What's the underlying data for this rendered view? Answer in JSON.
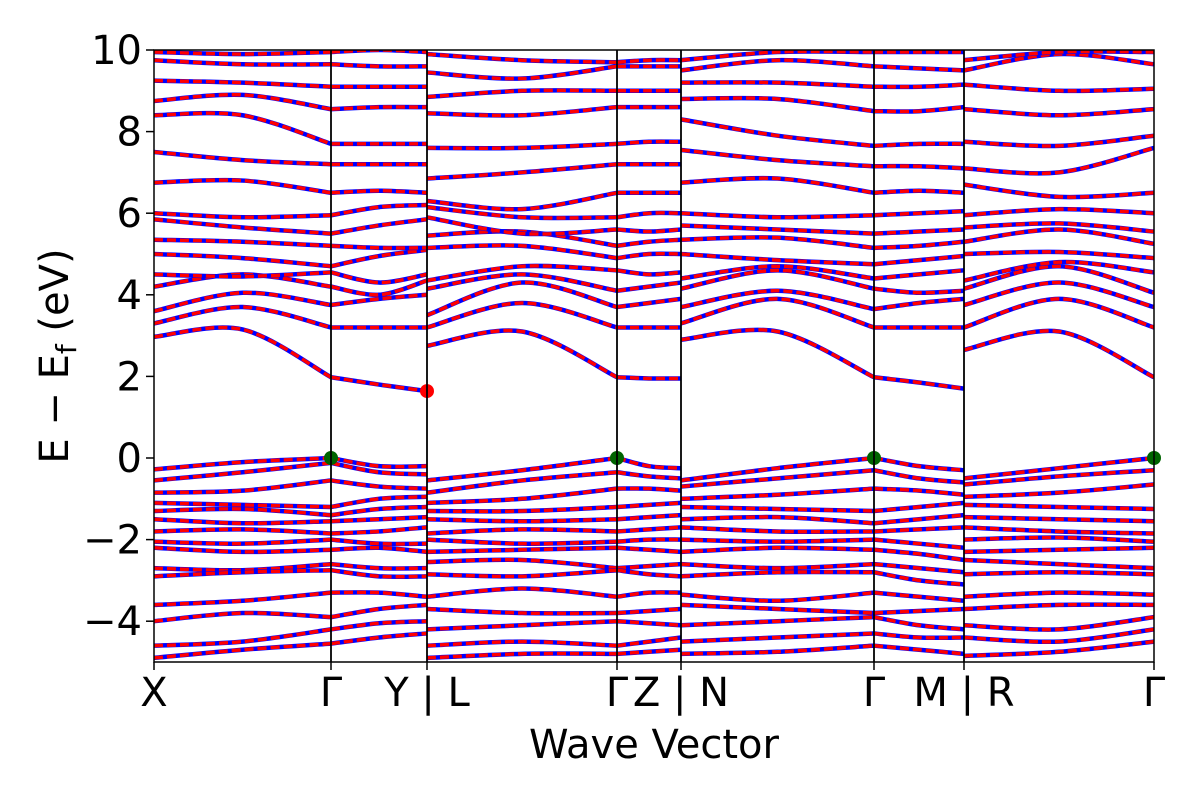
{
  "chart_data": {
    "type": "line",
    "title": "",
    "xlabel": "Wave Vector",
    "ylabel_parts": [
      "E − E",
      "f",
      " (eV)"
    ],
    "ylim": [
      -5,
      10
    ],
    "yticks": [
      10,
      8,
      6,
      4,
      2,
      0,
      -2,
      -4
    ],
    "ytick_labels": [
      "10",
      "8",
      "6",
      "4",
      "2",
      "0",
      "−2",
      "−4"
    ],
    "grid": false,
    "legend": "none",
    "xlim": [
      0,
      1
    ],
    "xticks": [
      0.0,
      0.177,
      0.273,
      0.463,
      0.527,
      0.72,
      0.81,
      1.0
    ],
    "xtick_labels": [
      "X",
      "Γ",
      "Y | L",
      "Γ",
      "Z | N",
      "Γ",
      "M | R",
      "Γ"
    ],
    "colors": {
      "series_1": "#0000ff",
      "series_2": "#ff0000",
      "vbm_marker": "#006400",
      "cbm_marker": "#ff0000"
    },
    "series": [
      {
        "style": "blue solid"
      },
      {
        "style": "red dashed"
      }
    ],
    "band_extrema_markers": [
      {
        "kind": "VBM",
        "points": [
          [
            0.177,
            0.0
          ],
          [
            0.463,
            0.0
          ],
          [
            0.72,
            0.0
          ],
          [
            1.0,
            0.0
          ]
        ]
      },
      {
        "kind": "CBM",
        "points": [
          [
            0.273,
            1.64
          ]
        ]
      }
    ],
    "bands_by_segment": {
      "X-Gamma": [
        [
          0,
          -0.28,
          -0.1,
          0
        ],
        [
          0,
          -0.55,
          -0.35,
          -0.12
        ],
        [
          0,
          -0.85,
          -0.8,
          -0.55
        ],
        [
          0,
          -1.1,
          -1.15,
          -1.2
        ],
        [
          0,
          -1.3,
          -1.25,
          -1.4
        ],
        [
          0,
          -1.5,
          -1.6,
          -1.55
        ],
        [
          0,
          -1.8,
          -1.75,
          -1.85
        ],
        [
          0,
          -2.05,
          -2.1,
          -2.0
        ],
        [
          0,
          -2.2,
          -2.3,
          -2.25
        ],
        [
          0,
          -2.7,
          -2.75,
          -2.6
        ],
        [
          0,
          -2.9,
          -2.8,
          -2.75
        ],
        [
          0,
          -3.6,
          -3.5,
          -3.3
        ],
        [
          0,
          -4.0,
          -3.8,
          -3.9
        ],
        [
          0,
          -4.6,
          -4.5,
          -4.2
        ],
        [
          0,
          -4.9,
          -4.7,
          -4.55
        ],
        [
          0,
          2.97,
          3.15,
          1.98
        ],
        [
          0,
          3.3,
          3.7,
          3.2
        ],
        [
          0,
          3.6,
          4.05,
          3.75
        ],
        [
          0,
          4.2,
          4.5,
          4.2
        ],
        [
          0,
          4.5,
          4.45,
          4.55
        ],
        [
          0,
          5.0,
          4.9,
          4.7
        ],
        [
          0,
          5.35,
          5.3,
          5.2
        ],
        [
          0,
          5.85,
          5.65,
          5.5
        ],
        [
          0,
          6.0,
          5.9,
          5.95
        ],
        [
          0,
          6.75,
          6.8,
          6.5
        ],
        [
          0,
          7.5,
          7.3,
          7.2
        ],
        [
          0,
          8.4,
          8.4,
          7.7
        ],
        [
          0,
          8.75,
          8.9,
          8.55
        ],
        [
          0,
          9.25,
          9.2,
          9.1
        ],
        [
          0,
          9.75,
          9.65,
          9.65
        ],
        [
          0,
          9.95,
          9.9,
          9.95
        ]
      ],
      "Gamma-Y": [
        [
          0,
          0.0,
          -0.2,
          -0.2
        ],
        [
          0,
          -0.12,
          -0.35,
          -0.4
        ],
        [
          0,
          -0.55,
          -0.7,
          -0.75
        ],
        [
          0,
          -1.2,
          -1.0,
          -0.95
        ],
        [
          0,
          -1.4,
          -1.25,
          -1.2
        ],
        [
          0,
          -1.55,
          -1.5,
          -1.45
        ],
        [
          0,
          -1.85,
          -1.8,
          -1.7
        ],
        [
          0,
          -2.0,
          -2.1,
          -2.1
        ],
        [
          0,
          -2.25,
          -2.2,
          -2.3
        ],
        [
          0,
          -2.6,
          -2.7,
          -2.7
        ],
        [
          0,
          -2.75,
          -2.9,
          -2.9
        ],
        [
          0,
          -3.3,
          -3.3,
          -3.4
        ],
        [
          0,
          -3.9,
          -3.7,
          -3.6
        ],
        [
          0,
          -4.2,
          -4.05,
          -4.0
        ],
        [
          0,
          -4.55,
          -4.4,
          -4.3
        ],
        [
          0,
          1.98,
          1.8,
          1.64
        ],
        [
          0,
          3.2,
          3.2,
          3.2
        ],
        [
          0,
          3.75,
          3.9,
          4.0
        ],
        [
          0,
          4.2,
          4.0,
          4.35
        ],
        [
          0,
          4.55,
          4.3,
          4.5
        ],
        [
          0,
          4.7,
          4.95,
          5.1
        ],
        [
          0,
          5.2,
          5.15,
          5.15
        ],
        [
          0,
          5.5,
          5.7,
          5.85
        ],
        [
          0,
          5.95,
          6.15,
          6.2
        ],
        [
          0,
          6.5,
          6.55,
          6.5
        ],
        [
          0,
          7.2,
          7.2,
          7.2
        ],
        [
          0,
          7.7,
          7.7,
          7.7
        ],
        [
          0,
          8.55,
          8.6,
          8.6
        ],
        [
          0,
          9.1,
          9.1,
          9.1
        ],
        [
          0,
          9.65,
          9.6,
          9.6
        ],
        [
          0,
          9.95,
          10.0,
          9.95
        ]
      ],
      "L-Gamma": [
        [
          0,
          -0.55,
          -0.3,
          0.0
        ],
        [
          0,
          -0.85,
          -0.55,
          -0.35
        ],
        [
          0,
          -1.1,
          -1.0,
          -0.75
        ],
        [
          0,
          -1.3,
          -1.3,
          -1.2
        ],
        [
          0,
          -1.5,
          -1.55,
          -1.5
        ],
        [
          0,
          -1.85,
          -1.75,
          -1.8
        ],
        [
          0,
          -2.0,
          -2.1,
          -2.05
        ],
        [
          0,
          -2.3,
          -2.25,
          -2.2
        ],
        [
          0,
          -2.55,
          -2.5,
          -2.7
        ],
        [
          0,
          -2.85,
          -2.9,
          -2.75
        ],
        [
          0,
          -3.4,
          -3.2,
          -3.4
        ],
        [
          0,
          -3.7,
          -3.8,
          -3.8
        ],
        [
          0,
          -4.2,
          -4.1,
          -4.0
        ],
        [
          0,
          -4.6,
          -4.5,
          -4.6
        ],
        [
          0,
          -4.9,
          -4.8,
          -4.8
        ],
        [
          0,
          2.75,
          3.1,
          1.98
        ],
        [
          0,
          3.2,
          3.8,
          3.2
        ],
        [
          0,
          3.5,
          4.3,
          3.7
        ],
        [
          0,
          4.15,
          4.5,
          4.1
        ],
        [
          0,
          4.35,
          4.7,
          4.6
        ],
        [
          0,
          5.15,
          5.2,
          4.9
        ],
        [
          0,
          5.45,
          5.55,
          5.2
        ],
        [
          0,
          5.9,
          5.5,
          5.6
        ],
        [
          0,
          6.15,
          5.9,
          5.9
        ],
        [
          0,
          6.3,
          6.1,
          6.5
        ],
        [
          0,
          6.85,
          7.0,
          7.2
        ],
        [
          0,
          7.6,
          7.6,
          7.7
        ],
        [
          0,
          8.45,
          8.4,
          8.6
        ],
        [
          0,
          8.85,
          9.0,
          9.0
        ],
        [
          0,
          9.45,
          9.3,
          9.6
        ],
        [
          0,
          9.9,
          9.75,
          9.7
        ]
      ],
      "Gamma-Z": [
        [
          0,
          0.0,
          -0.2,
          -0.25
        ],
        [
          0,
          -0.35,
          -0.45,
          -0.5
        ],
        [
          0,
          -0.75,
          -0.75,
          -0.8
        ],
        [
          0,
          -1.2,
          -1.15,
          -1.1
        ],
        [
          0,
          -1.5,
          -1.45,
          -1.4
        ],
        [
          0,
          -1.8,
          -1.75,
          -1.7
        ],
        [
          0,
          -2.05,
          -2.0,
          -2.0
        ],
        [
          0,
          -2.2,
          -2.25,
          -2.3
        ],
        [
          0,
          -2.7,
          -2.65,
          -2.6
        ],
        [
          0,
          -2.75,
          -2.85,
          -2.9
        ],
        [
          0,
          -3.4,
          -3.3,
          -3.3
        ],
        [
          0,
          -3.8,
          -3.75,
          -3.7
        ],
        [
          0,
          -4.0,
          -4.05,
          -4.1
        ],
        [
          0,
          -4.6,
          -4.5,
          -4.4
        ],
        [
          0,
          -4.8,
          -4.75,
          -4.7
        ],
        [
          0,
          1.98,
          1.95,
          1.95
        ],
        [
          0,
          3.2,
          3.2,
          3.2
        ],
        [
          0,
          3.7,
          3.8,
          3.9
        ],
        [
          0,
          4.1,
          4.2,
          4.3
        ],
        [
          0,
          4.6,
          4.5,
          4.55
        ],
        [
          0,
          4.9,
          5.0,
          5.0
        ],
        [
          0,
          5.2,
          5.3,
          5.35
        ],
        [
          0,
          5.6,
          5.55,
          5.6
        ],
        [
          0,
          5.9,
          6.0,
          6.0
        ],
        [
          0,
          6.5,
          6.5,
          6.5
        ],
        [
          0,
          7.2,
          7.2,
          7.2
        ],
        [
          0,
          7.7,
          7.75,
          7.75
        ],
        [
          0,
          8.6,
          8.6,
          8.6
        ],
        [
          0,
          9.0,
          9.0,
          9.0
        ],
        [
          0,
          9.6,
          9.6,
          9.6
        ],
        [
          0,
          9.7,
          9.75,
          9.75
        ]
      ],
      "N-Gamma": [
        [
          0,
          -0.55,
          -0.25,
          0.0
        ],
        [
          0,
          -0.7,
          -0.5,
          -0.3
        ],
        [
          0,
          -1.0,
          -0.9,
          -0.75
        ],
        [
          0,
          -1.2,
          -1.25,
          -1.3
        ],
        [
          0,
          -1.5,
          -1.45,
          -1.6
        ],
        [
          0,
          -1.7,
          -1.8,
          -1.8
        ],
        [
          0,
          -2.0,
          -2.05,
          -2.0
        ],
        [
          0,
          -2.3,
          -2.2,
          -2.25
        ],
        [
          0,
          -2.6,
          -2.7,
          -2.6
        ],
        [
          0,
          -2.9,
          -2.8,
          -2.8
        ],
        [
          0,
          -3.35,
          -3.5,
          -3.3
        ],
        [
          0,
          -3.6,
          -3.7,
          -3.8
        ],
        [
          0,
          -4.1,
          -4.0,
          -3.9
        ],
        [
          0,
          -4.5,
          -4.4,
          -4.3
        ],
        [
          0,
          -4.8,
          -4.75,
          -4.6
        ],
        [
          0,
          2.9,
          3.1,
          1.98
        ],
        [
          0,
          3.3,
          3.9,
          3.2
        ],
        [
          0,
          3.7,
          4.1,
          3.65
        ],
        [
          0,
          4.15,
          4.6,
          4.15
        ],
        [
          0,
          4.4,
          4.7,
          4.4
        ],
        [
          0,
          5.0,
          4.85,
          4.75
        ],
        [
          0,
          5.35,
          5.4,
          5.15
        ],
        [
          0,
          5.7,
          5.6,
          5.5
        ],
        [
          0,
          6.0,
          5.9,
          5.95
        ],
        [
          0,
          6.75,
          6.85,
          6.5
        ],
        [
          0,
          7.55,
          7.3,
          7.15
        ],
        [
          0,
          8.3,
          7.9,
          7.65
        ],
        [
          0,
          8.8,
          8.8,
          8.5
        ],
        [
          0,
          9.2,
          9.2,
          9.1
        ],
        [
          0,
          9.5,
          9.75,
          9.6
        ],
        [
          0,
          9.75,
          9.95,
          9.95
        ]
      ],
      "Gamma-M": [
        [
          0,
          0.0,
          -0.2,
          -0.3
        ],
        [
          0,
          -0.3,
          -0.5,
          -0.6
        ],
        [
          0,
          -0.75,
          -0.8,
          -0.9
        ],
        [
          0,
          -1.3,
          -1.2,
          -1.1
        ],
        [
          0,
          -1.6,
          -1.5,
          -1.4
        ],
        [
          0,
          -1.8,
          -1.75,
          -1.7
        ],
        [
          0,
          -2.0,
          -2.1,
          -2.2
        ],
        [
          0,
          -2.25,
          -2.35,
          -2.5
        ],
        [
          0,
          -2.6,
          -2.7,
          -2.8
        ],
        [
          0,
          -2.8,
          -3.0,
          -3.1
        ],
        [
          0,
          -3.3,
          -3.4,
          -3.5
        ],
        [
          0,
          -3.8,
          -3.75,
          -3.7
        ],
        [
          0,
          -3.9,
          -4.1,
          -4.2
        ],
        [
          0,
          -4.3,
          -4.4,
          -4.4
        ],
        [
          0,
          -4.6,
          -4.7,
          -4.8
        ],
        [
          0,
          1.98,
          1.85,
          1.7
        ],
        [
          0,
          3.2,
          3.2,
          3.2
        ],
        [
          0,
          3.65,
          3.8,
          3.9
        ],
        [
          0,
          4.15,
          4.05,
          4.1
        ],
        [
          0,
          4.4,
          4.5,
          4.6
        ],
        [
          0,
          4.75,
          4.85,
          4.95
        ],
        [
          0,
          5.15,
          5.2,
          5.3
        ],
        [
          0,
          5.5,
          5.55,
          5.6
        ],
        [
          0,
          5.95,
          6.0,
          6.05
        ],
        [
          0,
          6.5,
          6.55,
          6.5
        ],
        [
          0,
          7.15,
          7.15,
          7.1
        ],
        [
          0,
          7.65,
          7.7,
          7.7
        ],
        [
          0,
          8.5,
          8.5,
          8.6
        ],
        [
          0,
          9.1,
          9.1,
          9.15
        ],
        [
          0,
          9.6,
          9.55,
          9.5
        ],
        [
          0,
          9.95,
          9.95,
          9.95
        ]
      ],
      "R-Gamma": [
        [
          0,
          -0.5,
          -0.25,
          0.0
        ],
        [
          0,
          -0.65,
          -0.45,
          -0.3
        ],
        [
          0,
          -0.95,
          -0.85,
          -0.65
        ],
        [
          0,
          -1.15,
          -1.2,
          -1.25
        ],
        [
          0,
          -1.45,
          -1.5,
          -1.55
        ],
        [
          0,
          -1.7,
          -1.8,
          -1.85
        ],
        [
          0,
          -2.0,
          -1.95,
          -2.05
        ],
        [
          0,
          -2.3,
          -2.25,
          -2.2
        ],
        [
          0,
          -2.5,
          -2.6,
          -2.7
        ],
        [
          0,
          -2.85,
          -2.8,
          -2.85
        ],
        [
          0,
          -3.4,
          -3.3,
          -3.35
        ],
        [
          0,
          -3.7,
          -3.6,
          -3.6
        ],
        [
          0,
          -4.1,
          -4.2,
          -3.9
        ],
        [
          0,
          -4.4,
          -4.5,
          -4.2
        ],
        [
          0,
          -4.85,
          -4.75,
          -4.5
        ],
        [
          0,
          2.65,
          3.1,
          1.98
        ],
        [
          0,
          3.2,
          3.9,
          3.2
        ],
        [
          0,
          3.75,
          4.3,
          3.7
        ],
        [
          0,
          4.15,
          4.7,
          4.05
        ],
        [
          0,
          4.35,
          4.8,
          4.55
        ],
        [
          0,
          5.0,
          5.05,
          4.9
        ],
        [
          0,
          5.3,
          5.6,
          5.25
        ],
        [
          0,
          5.65,
          5.75,
          5.55
        ],
        [
          0,
          5.95,
          6.1,
          6.0
        ],
        [
          0,
          6.7,
          6.4,
          6.5
        ],
        [
          0,
          7.1,
          7.0,
          7.6
        ],
        [
          0,
          7.75,
          7.65,
          7.9
        ],
        [
          0,
          8.55,
          8.4,
          8.55
        ],
        [
          0,
          9.15,
          9.0,
          9.05
        ],
        [
          0,
          9.5,
          9.9,
          9.65
        ],
        [
          0,
          9.75,
          9.95,
          9.95
        ]
      ]
    }
  }
}
